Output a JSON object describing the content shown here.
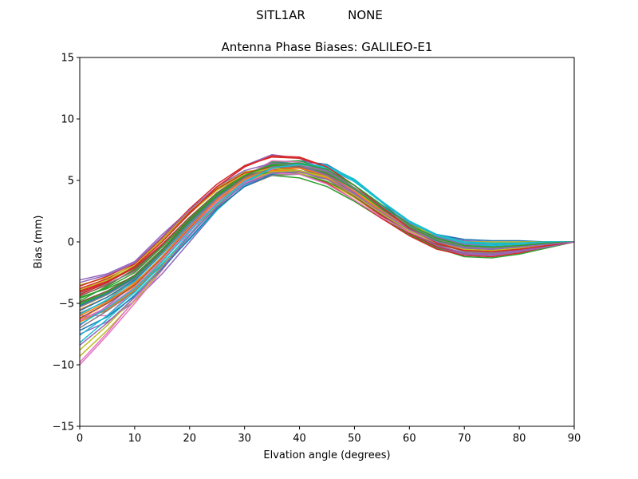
{
  "header": {
    "station": "SITL1AR",
    "radome": "NONE"
  },
  "chart_data": {
    "type": "line",
    "title": "Antenna Phase Biases: GALILEO-E1",
    "xlabel": "Elvation angle (degrees)",
    "ylabel": "Bias (mm)",
    "xlim": [
      0,
      90
    ],
    "ylim": [
      -15,
      15
    ],
    "xticks": [
      "0",
      "10",
      "20",
      "30",
      "40",
      "50",
      "60",
      "70",
      "80",
      "90"
    ],
    "yticks": [
      "−15",
      "−10",
      "−5",
      "0",
      "5",
      "10",
      "15"
    ],
    "grid": false,
    "legend": "none",
    "x": [
      0,
      5,
      10,
      15,
      20,
      25,
      30,
      35,
      40,
      45,
      50,
      55,
      60,
      65,
      70,
      75,
      80,
      85,
      90
    ],
    "series": [
      {
        "color": "#1f77b4",
        "values": [
          -6.5,
          -5.4,
          -3.9,
          -1.9,
          0.6,
          3.2,
          5.3,
          6.4,
          6.6,
          6.3,
          5.0,
          3.2,
          1.3,
          0.0,
          -0.4,
          -0.3,
          -0.1,
          0.0,
          0.0
        ]
      },
      {
        "color": "#ff7f0e",
        "values": [
          -5.5,
          -4.5,
          -3.3,
          -1.4,
          1.0,
          3.1,
          5.0,
          6.0,
          6.2,
          5.6,
          4.2,
          2.5,
          0.9,
          -0.3,
          -0.9,
          -1.0,
          -0.7,
          -0.3,
          0.0
        ]
      },
      {
        "color": "#2ca02c",
        "values": [
          -4.5,
          -3.8,
          -2.8,
          -0.9,
          1.4,
          3.6,
          5.4,
          6.5,
          6.6,
          5.9,
          4.4,
          2.7,
          1.1,
          -0.1,
          -0.7,
          -0.8,
          -0.5,
          -0.2,
          0.0
        ]
      },
      {
        "color": "#d62728",
        "values": [
          -3.8,
          -3.0,
          -1.8,
          0.3,
          2.5,
          4.4,
          5.7,
          6.0,
          5.8,
          5.1,
          3.7,
          2.2,
          0.9,
          -0.1,
          -0.6,
          -0.7,
          -0.4,
          -0.2,
          0.0
        ]
      },
      {
        "color": "#9467bd",
        "values": [
          -7.5,
          -6.5,
          -4.8,
          -2.6,
          0.0,
          2.6,
          4.6,
          5.6,
          5.8,
          5.3,
          4.2,
          2.8,
          1.5,
          0.6,
          0.1,
          0.0,
          0.0,
          0.0,
          0.0
        ]
      },
      {
        "color": "#8c564b",
        "values": [
          -6.2,
          -5.6,
          -4.0,
          -1.6,
          1.2,
          3.6,
          5.4,
          6.3,
          6.1,
          5.3,
          3.8,
          2.1,
          0.6,
          -0.5,
          -1.0,
          -1.0,
          -0.7,
          -0.3,
          0.0
        ]
      },
      {
        "color": "#e377c2",
        "values": [
          -10.0,
          -7.6,
          -5.0,
          -2.3,
          0.6,
          3.3,
          5.3,
          6.6,
          6.5,
          5.7,
          4.1,
          2.4,
          0.8,
          -0.4,
          -1.0,
          -1.1,
          -0.8,
          -0.4,
          0.0
        ]
      },
      {
        "color": "#7f7f7f",
        "values": [
          -5.8,
          -4.8,
          -3.4,
          -1.2,
          1.3,
          3.6,
          5.4,
          6.4,
          6.4,
          5.8,
          4.4,
          2.7,
          1.1,
          -0.1,
          -0.8,
          -0.9,
          -0.6,
          -0.3,
          0.0
        ]
      },
      {
        "color": "#bcbd22",
        "values": [
          -9.3,
          -7.2,
          -4.8,
          -2.2,
          0.5,
          3.0,
          4.8,
          5.5,
          5.6,
          4.9,
          3.6,
          2.1,
          0.8,
          -0.2,
          -0.7,
          -0.8,
          -0.5,
          -0.2,
          0.0
        ]
      },
      {
        "color": "#17becf",
        "values": [
          -8.2,
          -6.3,
          -4.3,
          -2.0,
          0.2,
          2.6,
          4.6,
          5.8,
          6.3,
          6.2,
          5.1,
          3.3,
          1.6,
          0.4,
          -0.2,
          -0.3,
          -0.2,
          -0.1,
          0.0
        ]
      },
      {
        "color": "#1f77b4",
        "values": [
          -5.2,
          -4.2,
          -2.9,
          -0.8,
          1.6,
          3.7,
          5.3,
          6.1,
          6.0,
          5.2,
          3.8,
          2.3,
          0.9,
          0.0,
          -0.4,
          -0.5,
          -0.3,
          -0.1,
          0.0
        ]
      },
      {
        "color": "#ff7f0e",
        "values": [
          -6.3,
          -5.0,
          -3.6,
          -1.5,
          0.9,
          3.1,
          4.9,
          5.9,
          6.0,
          5.4,
          4.1,
          2.5,
          1.0,
          -0.1,
          -0.7,
          -0.8,
          -0.5,
          -0.2,
          0.0
        ]
      },
      {
        "color": "#2ca02c",
        "values": [
          -4.8,
          -3.6,
          -2.2,
          -0.2,
          2.0,
          3.9,
          5.1,
          5.4,
          5.2,
          4.5,
          3.3,
          1.9,
          0.6,
          -0.5,
          -1.2,
          -1.3,
          -1.0,
          -0.5,
          0.0
        ]
      },
      {
        "color": "#d62728",
        "values": [
          -4.1,
          -3.3,
          -2.1,
          -0.2,
          2.0,
          4.0,
          5.4,
          5.9,
          5.6,
          4.8,
          3.4,
          1.9,
          0.5,
          -0.6,
          -1.1,
          -1.2,
          -0.9,
          -0.4,
          0.0
        ]
      },
      {
        "color": "#9467bd",
        "values": [
          -3.1,
          -2.6,
          -1.6,
          0.6,
          2.6,
          4.4,
          6.2,
          7.1,
          6.8,
          5.8,
          4.2,
          2.4,
          0.8,
          -0.4,
          -1.0,
          -1.1,
          -0.8,
          -0.4,
          0.0
        ]
      },
      {
        "color": "#8c564b",
        "values": [
          -4.4,
          -3.5,
          -2.3,
          -0.3,
          2.0,
          4.0,
          5.5,
          6.2,
          6.0,
          5.3,
          3.9,
          2.3,
          0.8,
          -0.3,
          -0.9,
          -1.0,
          -0.7,
          -0.3,
          0.0
        ]
      },
      {
        "color": "#e377c2",
        "values": [
          -6.0,
          -6.0,
          -3.9,
          -1.6,
          0.9,
          3.2,
          5.0,
          5.9,
          6.1,
          5.6,
          4.4,
          2.9,
          1.4,
          0.3,
          -0.3,
          -0.4,
          -0.3,
          -0.1,
          0.0
        ]
      },
      {
        "color": "#7f7f7f",
        "values": [
          -7.0,
          -5.6,
          -4.0,
          -1.8,
          0.6,
          2.8,
          4.5,
          5.4,
          5.5,
          5.1,
          4.0,
          2.6,
          1.3,
          0.4,
          0.0,
          -0.1,
          -0.1,
          0.0,
          0.0
        ]
      },
      {
        "color": "#bcbd22",
        "values": [
          -3.5,
          -2.9,
          -1.9,
          0.2,
          2.5,
          4.4,
          5.7,
          6.0,
          5.6,
          4.9,
          3.6,
          2.1,
          0.8,
          -0.2,
          -0.7,
          -0.8,
          -0.6,
          -0.3,
          0.0
        ]
      },
      {
        "color": "#17becf",
        "values": [
          -5.9,
          -4.7,
          -3.2,
          -1.0,
          1.4,
          3.5,
          5.2,
          6.2,
          6.4,
          5.9,
          4.6,
          2.9,
          1.3,
          0.1,
          -0.5,
          -0.6,
          -0.4,
          -0.2,
          0.0
        ]
      },
      {
        "color": "#1f77b4",
        "values": [
          -7.2,
          -6.1,
          -4.4,
          -2.2,
          0.3,
          2.7,
          4.5,
          5.5,
          5.7,
          5.2,
          4.1,
          2.8,
          1.5,
          0.6,
          0.2,
          0.1,
          0.1,
          0.0,
          0.0
        ]
      },
      {
        "color": "#ff7f0e",
        "values": [
          -6.5,
          -5.5,
          -3.9,
          -1.6,
          1.0,
          3.2,
          4.9,
          5.8,
          5.8,
          5.2,
          3.9,
          2.4,
          1.0,
          0.0,
          -0.5,
          -0.6,
          -0.4,
          -0.2,
          0.0
        ]
      },
      {
        "color": "#2ca02c",
        "values": [
          -5.0,
          -4.0,
          -2.8,
          -0.7,
          1.7,
          3.8,
          5.3,
          5.7,
          5.5,
          4.9,
          3.8,
          2.4,
          1.1,
          0.3,
          -0.1,
          -0.1,
          -0.1,
          0.0,
          0.0
        ]
      },
      {
        "color": "#d62728",
        "values": [
          -3.6,
          -2.8,
          -1.7,
          0.4,
          2.7,
          4.7,
          6.2,
          6.9,
          6.8,
          6.1,
          4.6,
          2.8,
          1.1,
          -0.1,
          -0.6,
          -0.7,
          -0.5,
          -0.2,
          0.0
        ]
      },
      {
        "color": "#9467bd",
        "values": [
          -6.8,
          -5.2,
          -3.4,
          -1.2,
          1.3,
          3.5,
          5.2,
          6.2,
          6.3,
          5.8,
          4.6,
          3.0,
          1.5,
          0.4,
          -0.2,
          -0.2,
          -0.1,
          0.0,
          0.0
        ]
      },
      {
        "color": "#8c564b",
        "values": [
          -6.2,
          -5.0,
          -3.5,
          -1.3,
          1.1,
          3.4,
          5.1,
          6.0,
          6.1,
          5.5,
          4.2,
          2.6,
          1.1,
          0.0,
          -0.6,
          -0.7,
          -0.5,
          -0.2,
          0.0
        ]
      },
      {
        "color": "#e377c2",
        "values": [
          -9.8,
          -7.4,
          -4.7,
          -2.0,
          0.8,
          3.4,
          5.3,
          6.3,
          6.3,
          5.6,
          4.2,
          2.6,
          1.1,
          0.0,
          -0.6,
          -0.7,
          -0.5,
          -0.2,
          0.0
        ]
      },
      {
        "color": "#7f7f7f",
        "values": [
          -4.2,
          -3.4,
          -2.4,
          -0.4,
          1.9,
          3.9,
          5.4,
          6.1,
          6.0,
          5.4,
          4.1,
          2.6,
          1.2,
          0.2,
          -0.3,
          -0.4,
          -0.3,
          -0.1,
          0.0
        ]
      },
      {
        "color": "#bcbd22",
        "values": [
          -8.8,
          -6.8,
          -4.5,
          -2.0,
          0.6,
          3.0,
          4.8,
          5.7,
          5.8,
          5.3,
          4.1,
          2.7,
          1.4,
          0.5,
          0.0,
          0.0,
          0.0,
          0.0,
          0.0
        ]
      },
      {
        "color": "#17becf",
        "values": [
          -7.6,
          -6.0,
          -4.1,
          -1.8,
          0.6,
          2.9,
          4.8,
          6.0,
          6.4,
          6.1,
          5.0,
          3.3,
          1.7,
          0.6,
          0.0,
          -0.1,
          -0.1,
          0.0,
          0.0
        ]
      },
      {
        "color": "#1f77b4",
        "values": [
          -5.6,
          -4.5,
          -3.1,
          -0.9,
          1.5,
          3.6,
          5.2,
          6.1,
          6.2,
          5.6,
          4.3,
          2.7,
          1.2,
          0.1,
          -0.5,
          -0.6,
          -0.4,
          -0.2,
          0.0
        ]
      },
      {
        "color": "#ff7f0e",
        "values": [
          -6.0,
          -4.9,
          -3.4,
          -1.2,
          1.2,
          3.4,
          5.1,
          6.0,
          6.0,
          5.4,
          4.1,
          2.5,
          1.0,
          -0.1,
          -0.7,
          -0.8,
          -0.5,
          -0.2,
          0.0
        ]
      },
      {
        "color": "#2ca02c",
        "values": [
          -4.6,
          -3.7,
          -2.5,
          -0.4,
          1.9,
          3.9,
          5.4,
          6.2,
          6.2,
          5.6,
          4.3,
          2.7,
          1.2,
          0.1,
          -0.5,
          -0.6,
          -0.4,
          -0.2,
          0.0
        ]
      },
      {
        "color": "#d62728",
        "values": [
          -4.0,
          -3.2,
          -2.0,
          0.1,
          2.4,
          4.3,
          5.6,
          6.1,
          5.8,
          5.1,
          3.7,
          2.1,
          0.7,
          -0.4,
          -0.9,
          -1.0,
          -0.7,
          -0.3,
          0.0
        ]
      },
      {
        "color": "#9467bd",
        "values": [
          -3.3,
          -2.7,
          -1.7,
          0.4,
          2.6,
          4.5,
          5.8,
          6.4,
          6.2,
          5.4,
          4.0,
          2.3,
          0.8,
          -0.3,
          -0.9,
          -1.0,
          -0.7,
          -0.3,
          0.0
        ]
      },
      {
        "color": "#8c564b",
        "values": [
          -4.9,
          -4.0,
          -2.7,
          -0.6,
          1.8,
          3.8,
          5.3,
          6.0,
          5.8,
          5.1,
          3.7,
          2.2,
          0.8,
          -0.2,
          -0.7,
          -0.8,
          -0.6,
          -0.3,
          0.0
        ]
      },
      {
        "color": "#e377c2",
        "values": [
          -6.4,
          -5.3,
          -3.7,
          -1.4,
          1.0,
          3.2,
          4.8,
          5.6,
          5.5,
          4.7,
          3.4,
          2.0,
          0.8,
          -0.1,
          -0.5,
          -0.5,
          -0.3,
          -0.1,
          0.0
        ]
      },
      {
        "color": "#7f7f7f",
        "values": [
          -5.3,
          -4.3,
          -3.0,
          -0.9,
          1.5,
          3.6,
          5.2,
          6.1,
          6.2,
          5.7,
          4.4,
          2.8,
          1.3,
          0.2,
          -0.4,
          -0.5,
          -0.3,
          -0.1,
          0.0
        ]
      },
      {
        "color": "#bcbd22",
        "values": [
          -3.9,
          -3.1,
          -2.0,
          0.1,
          2.3,
          4.2,
          5.5,
          6.0,
          5.8,
          5.1,
          3.8,
          2.3,
          0.9,
          -0.1,
          -0.6,
          -0.7,
          -0.5,
          -0.2,
          0.0
        ]
      },
      {
        "color": "#17becf",
        "values": [
          -6.7,
          -5.4,
          -3.8,
          -1.6,
          0.9,
          3.1,
          4.9,
          6.0,
          6.3,
          6.0,
          4.9,
          3.2,
          1.6,
          0.5,
          -0.1,
          -0.2,
          -0.1,
          0.0,
          0.0
        ]
      },
      {
        "color": "#d62728",
        "values": [
          -4.3,
          -3.3,
          -2.0,
          0.0,
          2.3,
          4.5,
          6.1,
          7.0,
          6.9,
          6.1,
          4.6,
          2.8,
          1.1,
          -0.1,
          -0.7,
          -0.8,
          -0.6,
          -0.3,
          0.0
        ]
      },
      {
        "color": "#2ca02c",
        "values": [
          -5.1,
          -4.1,
          -2.8,
          -0.7,
          1.7,
          3.8,
          5.4,
          6.3,
          6.4,
          5.9,
          4.6,
          3.0,
          1.4,
          0.3,
          -0.3,
          -0.4,
          -0.3,
          -0.1,
          0.0
        ]
      },
      {
        "color": "#9467bd",
        "values": [
          -8.4,
          -6.6,
          -4.5,
          -2.1,
          0.5,
          2.9,
          4.7,
          5.6,
          5.7,
          5.1,
          3.9,
          2.4,
          1.0,
          0.0,
          -0.5,
          -0.6,
          -0.4,
          -0.2,
          0.0
        ]
      }
    ]
  }
}
